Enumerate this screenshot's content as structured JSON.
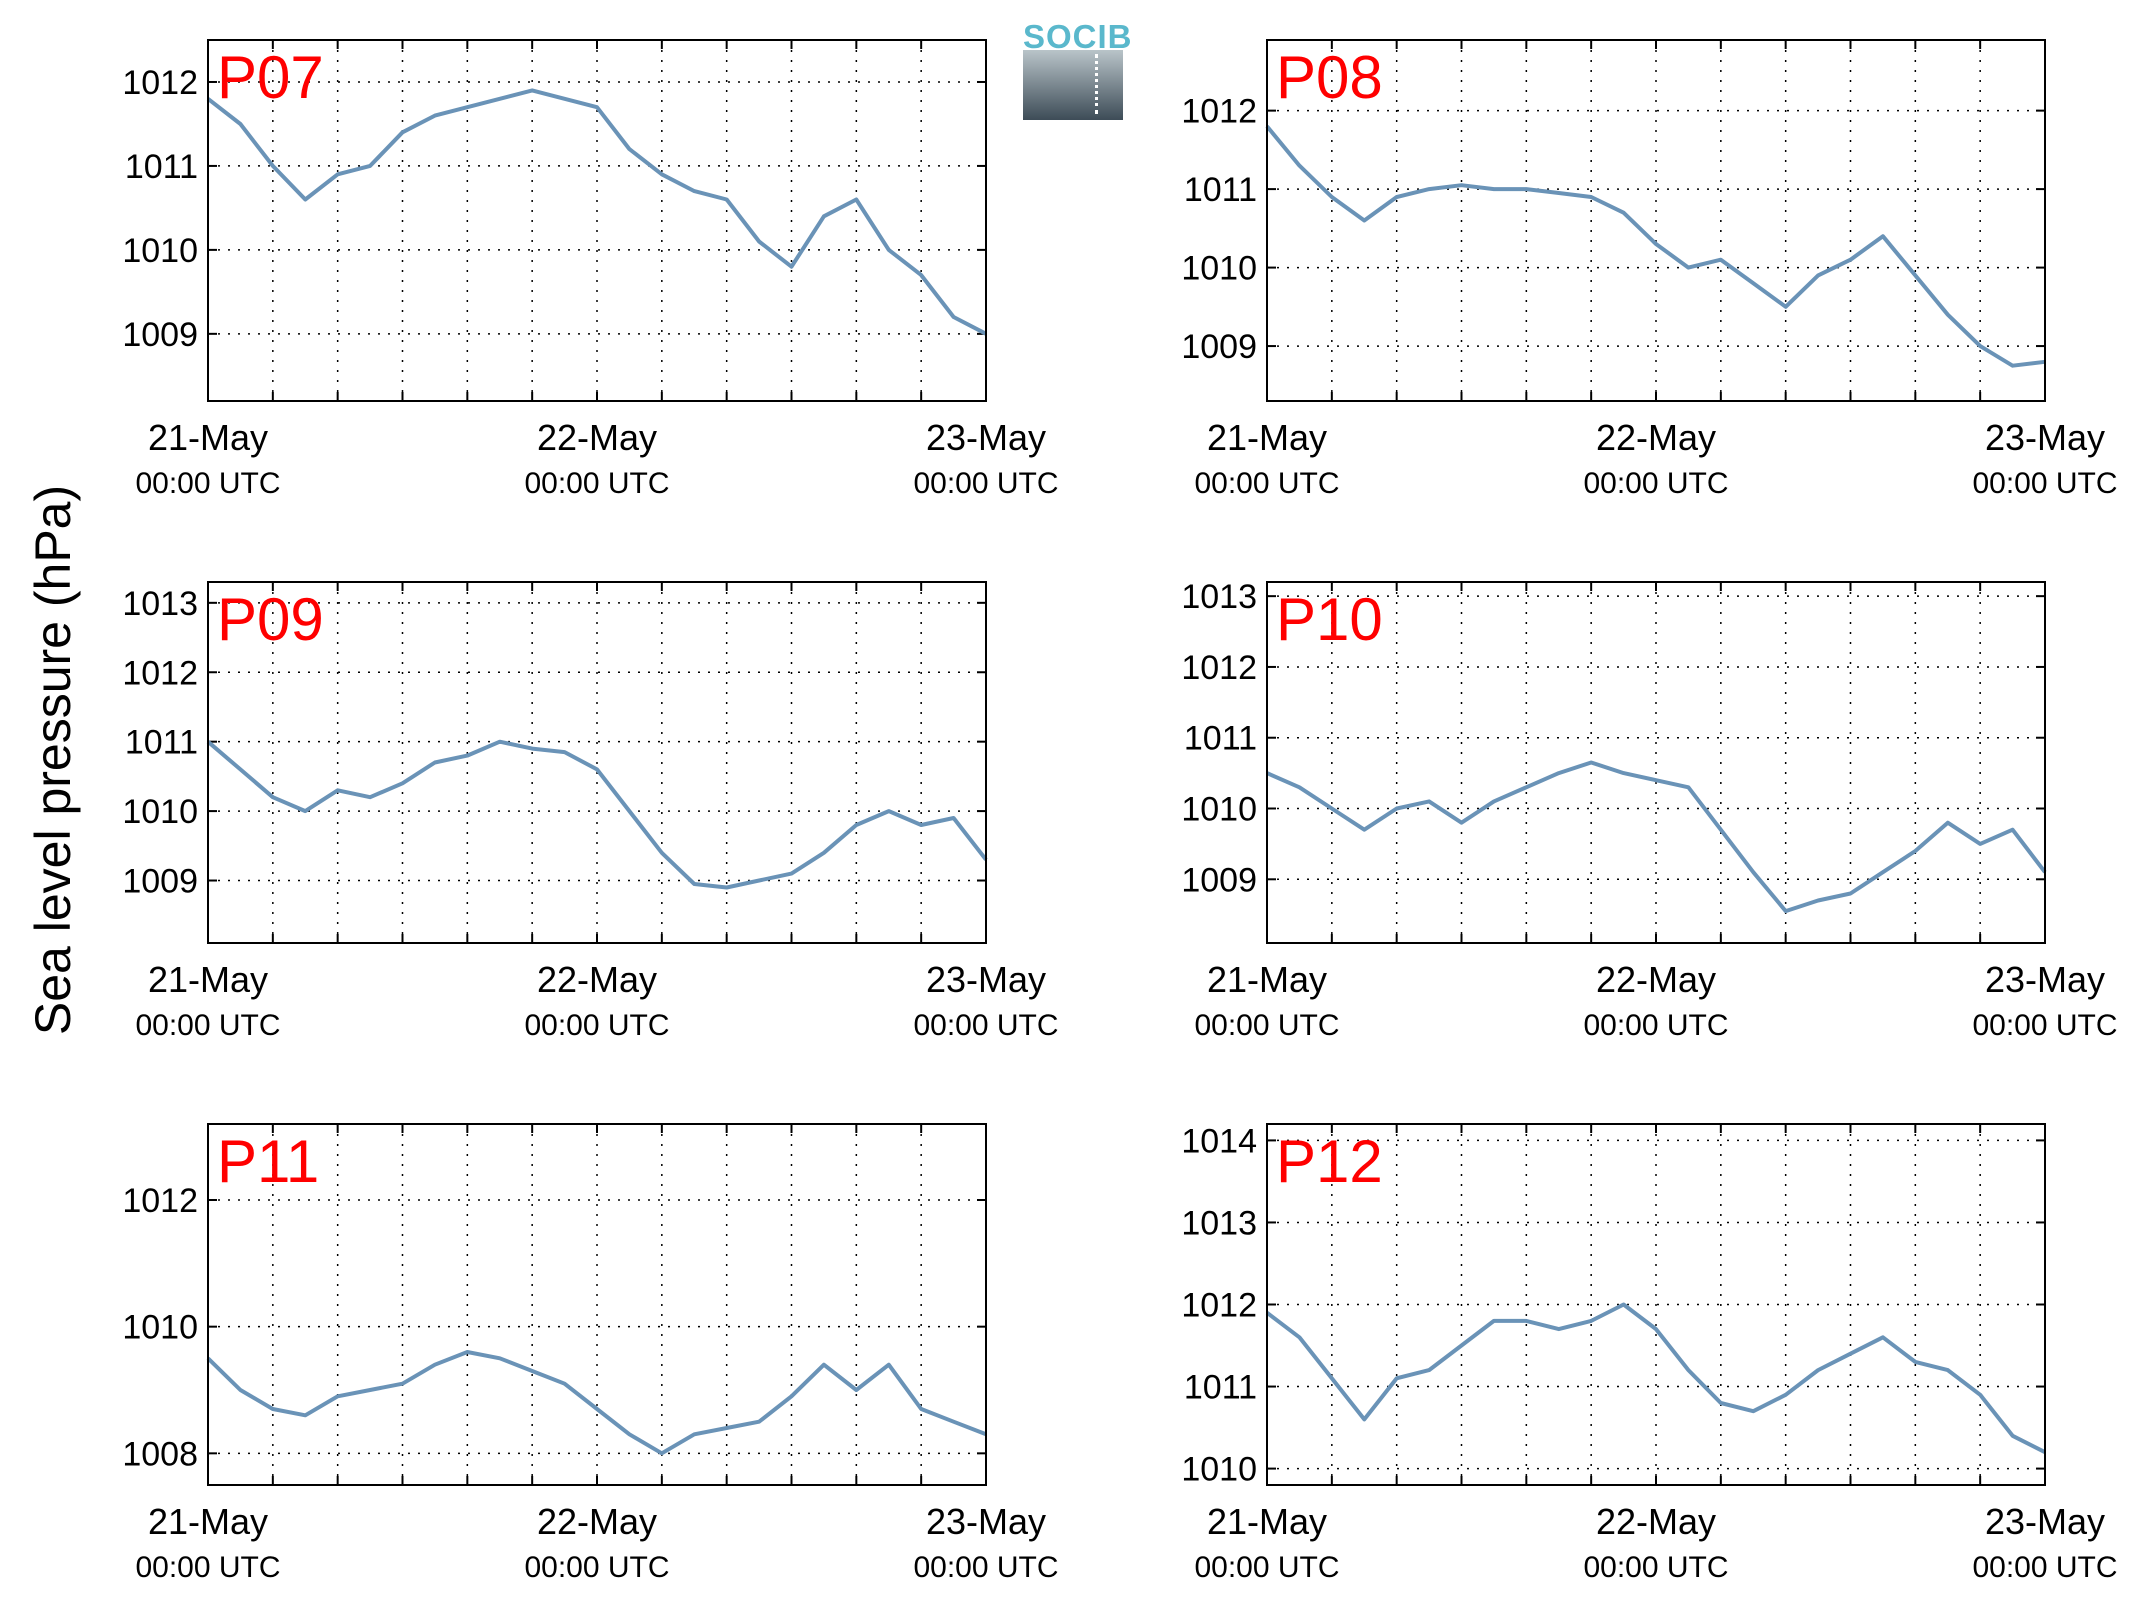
{
  "figure": {
    "ylabel": "Sea level pressure (hPa)",
    "logo": "SOCIB",
    "line_color": "#6a93b7",
    "panel_label_color": "#ff0000"
  },
  "chart_data": [
    {
      "type": "line",
      "panel": "P07",
      "grid": true,
      "x_ticks": [
        {
          "date": "21-May",
          "time": "00:00 UTC"
        },
        {
          "date": "22-May",
          "time": "00:00 UTC"
        },
        {
          "date": "23-May",
          "time": "00:00 UTC"
        }
      ],
      "xlim": [
        "21-May 00:00",
        "23-May 00:00"
      ],
      "ylim": [
        1008.2,
        1012.5
      ],
      "yticks": [
        1009,
        1010,
        1011,
        1012
      ],
      "series": [
        {
          "x_hours": [
            0,
            2,
            4,
            6,
            8,
            10,
            12,
            14,
            16,
            18,
            20,
            22,
            24,
            26,
            28,
            30,
            32,
            34,
            36,
            38,
            40,
            42,
            44,
            46,
            48
          ],
          "values": [
            1011.8,
            1011.5,
            1011.0,
            1010.6,
            1010.9,
            1011.0,
            1011.4,
            1011.6,
            1011.7,
            1011.8,
            1011.9,
            1011.8,
            1011.7,
            1011.2,
            1010.9,
            1010.7,
            1010.6,
            1010.1,
            1009.8,
            1010.4,
            1010.6,
            1010.0,
            1009.7,
            1009.2,
            1009.0
          ]
        }
      ]
    },
    {
      "type": "line",
      "panel": "P08",
      "grid": true,
      "x_ticks": [
        {
          "date": "21-May",
          "time": "00:00 UTC"
        },
        {
          "date": "22-May",
          "time": "00:00 UTC"
        },
        {
          "date": "23-May",
          "time": "00:00 UTC"
        }
      ],
      "xlim": [
        "21-May 00:00",
        "23-May 00:00"
      ],
      "ylim": [
        1008.3,
        1012.9
      ],
      "yticks": [
        1009,
        1010,
        1011,
        1012
      ],
      "series": [
        {
          "x_hours": [
            0,
            2,
            4,
            6,
            8,
            10,
            12,
            14,
            16,
            18,
            20,
            22,
            24,
            26,
            28,
            30,
            32,
            34,
            36,
            38,
            40,
            42,
            44,
            46,
            48
          ],
          "values": [
            1011.8,
            1011.3,
            1010.9,
            1010.6,
            1010.9,
            1011.0,
            1011.05,
            1011.0,
            1011.0,
            1010.95,
            1010.9,
            1010.7,
            1010.3,
            1010.0,
            1010.1,
            1009.8,
            1009.5,
            1009.9,
            1010.1,
            1010.4,
            1009.9,
            1009.4,
            1009.0,
            1008.75,
            1008.8
          ]
        }
      ]
    },
    {
      "type": "line",
      "panel": "P09",
      "grid": true,
      "x_ticks": [
        {
          "date": "21-May",
          "time": "00:00 UTC"
        },
        {
          "date": "22-May",
          "time": "00:00 UTC"
        },
        {
          "date": "23-May",
          "time": "00:00 UTC"
        }
      ],
      "xlim": [
        "21-May 00:00",
        "23-May 00:00"
      ],
      "ylim": [
        1008.1,
        1013.3
      ],
      "yticks": [
        1009,
        1010,
        1011,
        1012,
        1013
      ],
      "series": [
        {
          "x_hours": [
            0,
            2,
            4,
            6,
            8,
            10,
            12,
            14,
            16,
            18,
            20,
            22,
            24,
            26,
            28,
            30,
            32,
            34,
            36,
            38,
            40,
            42,
            44,
            46,
            48
          ],
          "values": [
            1011.0,
            1010.6,
            1010.2,
            1010.0,
            1010.3,
            1010.2,
            1010.4,
            1010.7,
            1010.8,
            1011.0,
            1010.9,
            1010.85,
            1010.6,
            1010.0,
            1009.4,
            1008.95,
            1008.9,
            1009.0,
            1009.1,
            1009.4,
            1009.8,
            1010.0,
            1009.8,
            1009.9,
            1009.3
          ]
        }
      ]
    },
    {
      "type": "line",
      "panel": "P10",
      "grid": true,
      "x_ticks": [
        {
          "date": "21-May",
          "time": "00:00 UTC"
        },
        {
          "date": "22-May",
          "time": "00:00 UTC"
        },
        {
          "date": "23-May",
          "time": "00:00 UTC"
        }
      ],
      "xlim": [
        "21-May 00:00",
        "23-May 00:00"
      ],
      "ylim": [
        1008.1,
        1013.2
      ],
      "yticks": [
        1009,
        1010,
        1011,
        1012,
        1013
      ],
      "series": [
        {
          "x_hours": [
            0,
            2,
            4,
            6,
            8,
            10,
            12,
            14,
            16,
            18,
            20,
            22,
            24,
            26,
            28,
            30,
            32,
            34,
            36,
            38,
            40,
            42,
            44,
            46,
            48
          ],
          "values": [
            1010.5,
            1010.3,
            1010.0,
            1009.7,
            1010.0,
            1010.1,
            1009.8,
            1010.1,
            1010.3,
            1010.5,
            1010.65,
            1010.5,
            1010.4,
            1010.3,
            1009.7,
            1009.1,
            1008.55,
            1008.7,
            1008.8,
            1009.1,
            1009.4,
            1009.8,
            1009.5,
            1009.7,
            1009.1
          ]
        }
      ]
    },
    {
      "type": "line",
      "panel": "P11",
      "grid": true,
      "x_ticks": [
        {
          "date": "21-May",
          "time": "00:00 UTC"
        },
        {
          "date": "22-May",
          "time": "00:00 UTC"
        },
        {
          "date": "23-May",
          "time": "00:00 UTC"
        }
      ],
      "xlim": [
        "21-May 00:00",
        "23-May 00:00"
      ],
      "ylim": [
        1007.5,
        1013.2
      ],
      "yticks": [
        1008,
        1010,
        1012
      ],
      "series": [
        {
          "x_hours": [
            0,
            2,
            4,
            6,
            8,
            10,
            12,
            14,
            16,
            18,
            20,
            22,
            24,
            26,
            28,
            30,
            32,
            34,
            36,
            38,
            40,
            42,
            44,
            46,
            48
          ],
          "values": [
            1009.5,
            1009.0,
            1008.7,
            1008.6,
            1008.9,
            1009.0,
            1009.1,
            1009.4,
            1009.6,
            1009.5,
            1009.3,
            1009.1,
            1008.7,
            1008.3,
            1008.0,
            1008.3,
            1008.4,
            1008.5,
            1008.9,
            1009.4,
            1009.0,
            1009.4,
            1008.7,
            1008.5,
            1008.3
          ]
        }
      ]
    },
    {
      "type": "line",
      "panel": "P12",
      "grid": true,
      "x_ticks": [
        {
          "date": "21-May",
          "time": "00:00 UTC"
        },
        {
          "date": "22-May",
          "time": "00:00 UTC"
        },
        {
          "date": "23-May",
          "time": "00:00 UTC"
        }
      ],
      "xlim": [
        "21-May 00:00",
        "23-May 00:00"
      ],
      "ylim": [
        1009.8,
        1014.2
      ],
      "yticks": [
        1010,
        1011,
        1012,
        1013,
        1014
      ],
      "series": [
        {
          "x_hours": [
            0,
            2,
            4,
            6,
            8,
            10,
            12,
            14,
            16,
            18,
            20,
            22,
            24,
            26,
            28,
            30,
            32,
            34,
            36,
            38,
            40,
            42,
            44,
            46,
            48
          ],
          "values": [
            1011.9,
            1011.6,
            1011.1,
            1010.6,
            1011.1,
            1011.2,
            1011.5,
            1011.8,
            1011.8,
            1011.7,
            1011.8,
            1012.0,
            1011.7,
            1011.2,
            1010.8,
            1010.7,
            1010.9,
            1011.2,
            1011.4,
            1011.6,
            1011.3,
            1011.2,
            1010.9,
            1010.4,
            1010.2
          ]
        }
      ]
    }
  ]
}
